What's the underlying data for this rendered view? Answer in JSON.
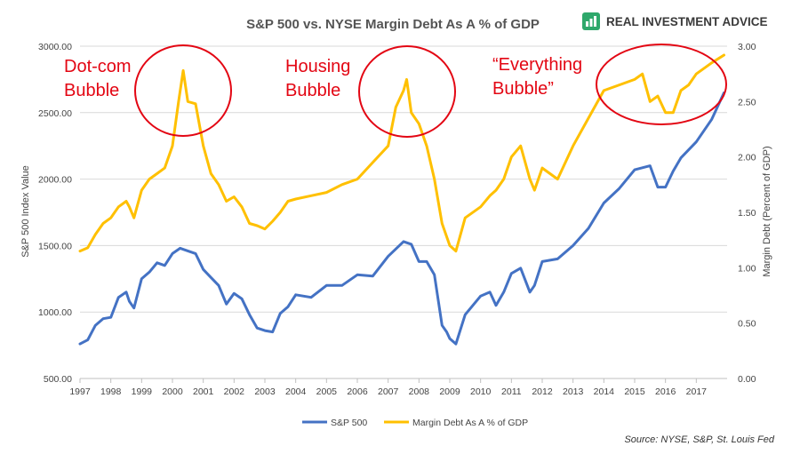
{
  "brand": {
    "name": "REAL INVESTMENT ADVICE",
    "icon": "investment-advice-logo-icon",
    "color": "#2ea86b"
  },
  "chart_data": {
    "type": "line",
    "title": "S&P 500 vs. NYSE Margin Debt As A % of GDP",
    "ylabel": "S&P 500 Index Value",
    "y2label": "Margin Debt (Percent of GDP)",
    "ylim": [
      500,
      3000
    ],
    "y2lim": [
      0,
      3
    ],
    "xlim": [
      1997,
      2018
    ],
    "x_ticks": [
      "1997",
      "1998",
      "1999",
      "2000",
      "2001",
      "2002",
      "2003",
      "2004",
      "2005",
      "2006",
      "2007",
      "2008",
      "2009",
      "2010",
      "2011",
      "2012",
      "2013",
      "2014",
      "2015",
      "2016",
      "2017"
    ],
    "y_ticks": [
      "500.00",
      "1000.00",
      "1500.00",
      "2000.00",
      "2500.00",
      "3000.00"
    ],
    "y2_ticks": [
      "0.00",
      "0.50",
      "1.00",
      "1.50",
      "2.00",
      "2.50",
      "3.00"
    ],
    "grid": "horizontal",
    "legend_position": "bottom",
    "source": "Source: NYSE, S&P, St. Louis Fed",
    "annotations": [
      {
        "lines": [
          "Dot-com",
          "Bubble"
        ]
      },
      {
        "lines": [
          "Housing",
          "Bubble"
        ]
      },
      {
        "lines": [
          "“Everything",
          "Bubble”"
        ]
      }
    ],
    "series": [
      {
        "name": "S&P 500",
        "axis": "left",
        "color": "#4472c4",
        "x": [
          1997.0,
          1997.25,
          1997.5,
          1997.75,
          1998.0,
          1998.25,
          1998.5,
          1998.6,
          1998.75,
          1999.0,
          1999.25,
          1999.5,
          1999.75,
          2000.0,
          2000.25,
          2000.5,
          2000.75,
          2001.0,
          2001.25,
          2001.5,
          2001.75,
          2002.0,
          2002.25,
          2002.5,
          2002.75,
          2003.0,
          2003.25,
          2003.5,
          2003.75,
          2004.0,
          2004.5,
          2005.0,
          2005.5,
          2006.0,
          2006.5,
          2007.0,
          2007.5,
          2007.75,
          2008.0,
          2008.25,
          2008.5,
          2008.75,
          2008.9,
          2009.0,
          2009.2,
          2009.5,
          2010.0,
          2010.3,
          2010.5,
          2010.75,
          2011.0,
          2011.3,
          2011.6,
          2011.75,
          2012.0,
          2012.5,
          2013.0,
          2013.5,
          2014.0,
          2014.5,
          2015.0,
          2015.5,
          2015.75,
          2016.0,
          2016.25,
          2016.5,
          2017.0,
          2017.5,
          2017.9
        ],
        "y": [
          760,
          790,
          900,
          950,
          960,
          1110,
          1150,
          1080,
          1030,
          1250,
          1300,
          1370,
          1350,
          1440,
          1480,
          1460,
          1440,
          1320,
          1260,
          1200,
          1060,
          1140,
          1100,
          980,
          880,
          860,
          850,
          990,
          1040,
          1130,
          1110,
          1200,
          1200,
          1280,
          1270,
          1420,
          1530,
          1510,
          1380,
          1380,
          1280,
          900,
          850,
          800,
          760,
          980,
          1120,
          1150,
          1050,
          1150,
          1290,
          1330,
          1150,
          1200,
          1380,
          1400,
          1500,
          1630,
          1820,
          1930,
          2070,
          2100,
          1940,
          1940,
          2060,
          2160,
          2280,
          2450,
          2650
        ]
      },
      {
        "name": "Margin Debt As A % of GDP",
        "axis": "right",
        "color": "#ffc000",
        "x": [
          1997.0,
          1997.25,
          1997.5,
          1997.75,
          1998.0,
          1998.25,
          1998.5,
          1998.6,
          1998.75,
          1999.0,
          1999.25,
          1999.5,
          1999.75,
          2000.0,
          2000.2,
          2000.35,
          2000.5,
          2000.75,
          2001.0,
          2001.25,
          2001.5,
          2001.75,
          2002.0,
          2002.25,
          2002.5,
          2002.75,
          2003.0,
          2003.25,
          2003.5,
          2003.75,
          2004.0,
          2004.5,
          2005.0,
          2005.5,
          2006.0,
          2006.5,
          2007.0,
          2007.25,
          2007.5,
          2007.6,
          2007.75,
          2008.0,
          2008.25,
          2008.5,
          2008.75,
          2009.0,
          2009.2,
          2009.5,
          2010.0,
          2010.3,
          2010.5,
          2010.75,
          2011.0,
          2011.3,
          2011.6,
          2011.75,
          2012.0,
          2012.5,
          2013.0,
          2013.5,
          2014.0,
          2014.5,
          2015.0,
          2015.25,
          2015.5,
          2015.75,
          2016.0,
          2016.25,
          2016.5,
          2016.75,
          2017.0,
          2017.5,
          2017.9
        ],
        "y": [
          1.15,
          1.18,
          1.3,
          1.4,
          1.45,
          1.55,
          1.6,
          1.55,
          1.45,
          1.7,
          1.8,
          1.85,
          1.9,
          2.1,
          2.5,
          2.78,
          2.5,
          2.48,
          2.1,
          1.85,
          1.75,
          1.6,
          1.64,
          1.55,
          1.4,
          1.38,
          1.35,
          1.42,
          1.5,
          1.6,
          1.62,
          1.65,
          1.68,
          1.75,
          1.8,
          1.95,
          2.1,
          2.45,
          2.6,
          2.7,
          2.4,
          2.3,
          2.1,
          1.8,
          1.4,
          1.2,
          1.15,
          1.45,
          1.55,
          1.65,
          1.7,
          1.8,
          2.0,
          2.1,
          1.8,
          1.7,
          1.9,
          1.8,
          2.1,
          2.35,
          2.6,
          2.65,
          2.7,
          2.75,
          2.5,
          2.55,
          2.4,
          2.4,
          2.6,
          2.65,
          2.75,
          2.85,
          2.92
        ]
      }
    ]
  }
}
